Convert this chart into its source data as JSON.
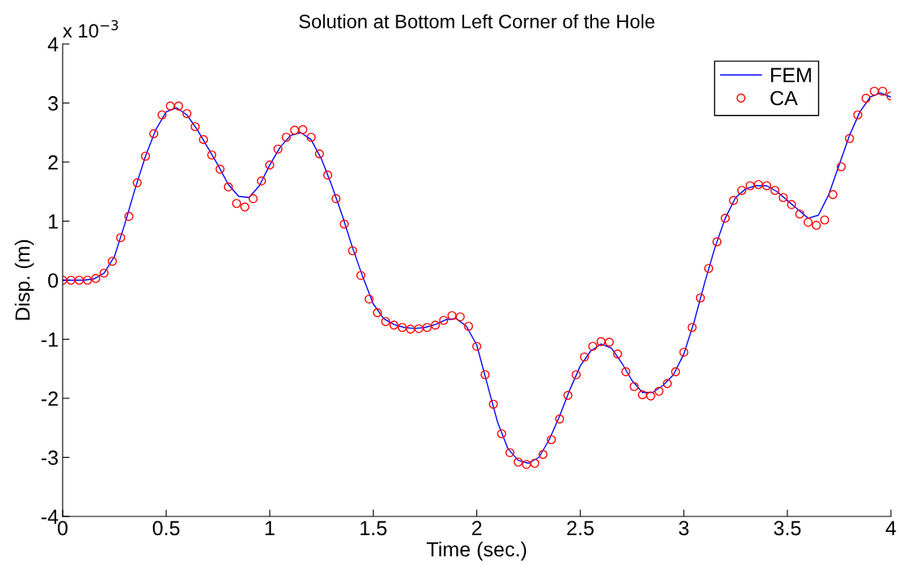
{
  "chart_data": {
    "type": "line",
    "title": "Solution at Bottom Left Corner of the Hole",
    "xlabel": "Time (sec.)",
    "ylabel": "Disp. (m)",
    "annotations": [
      "x 10$^{−3}$"
    ],
    "xlim": [
      0,
      4
    ],
    "xticks": [
      0,
      0.5,
      1,
      1.5,
      2,
      2.5,
      3,
      3.5,
      4
    ],
    "ylim": [
      -4,
      4
    ],
    "yticks": [
      -4,
      -3,
      -2,
      -1,
      0,
      1,
      2,
      3,
      4
    ],
    "grid": false,
    "legend": "top right",
    "series": [
      {
        "name": "FEM",
        "color": "#0000ff",
        "marker": "none",
        "line_style": "solid",
        "x": [
          0,
          0.05,
          0.1,
          0.15,
          0.2,
          0.25,
          0.3,
          0.35,
          0.4,
          0.45,
          0.5,
          0.55,
          0.6,
          0.65,
          0.7,
          0.75,
          0.8,
          0.85,
          0.9,
          0.95,
          1.0,
          1.05,
          1.1,
          1.15,
          1.2,
          1.25,
          1.3,
          1.35,
          1.4,
          1.45,
          1.5,
          1.55,
          1.6,
          1.65,
          1.7,
          1.75,
          1.8,
          1.85,
          1.9,
          1.95,
          2.0,
          2.05,
          2.1,
          2.15,
          2.2,
          2.25,
          2.3,
          2.35,
          2.4,
          2.45,
          2.5,
          2.55,
          2.6,
          2.65,
          2.7,
          2.75,
          2.8,
          2.85,
          2.9,
          2.95,
          3.0,
          3.05,
          3.1,
          3.15,
          3.2,
          3.25,
          3.3,
          3.35,
          3.4,
          3.45,
          3.5,
          3.55,
          3.6,
          3.65,
          3.7,
          3.75,
          3.8,
          3.85,
          3.9,
          3.95,
          4.0
        ],
        "values": [
          0,
          0,
          0,
          0.02,
          0.12,
          0.4,
          0.95,
          1.55,
          2.1,
          2.55,
          2.85,
          2.92,
          2.8,
          2.55,
          2.25,
          1.95,
          1.62,
          1.42,
          1.4,
          1.6,
          1.95,
          2.25,
          2.45,
          2.5,
          2.38,
          2.05,
          1.6,
          1.1,
          0.55,
          0.05,
          -0.4,
          -0.65,
          -0.75,
          -0.8,
          -0.82,
          -0.8,
          -0.75,
          -0.67,
          -0.65,
          -0.78,
          -1.1,
          -1.75,
          -2.4,
          -2.85,
          -3.05,
          -3.1,
          -3.0,
          -2.7,
          -2.3,
          -1.85,
          -1.45,
          -1.2,
          -1.08,
          -1.15,
          -1.4,
          -1.7,
          -1.9,
          -1.9,
          -1.78,
          -1.6,
          -1.25,
          -0.7,
          -0.05,
          0.55,
          1.05,
          1.4,
          1.55,
          1.6,
          1.6,
          1.5,
          1.35,
          1.2,
          1.05,
          1.1,
          1.45,
          1.95,
          2.45,
          2.85,
          3.1,
          3.17,
          3.1
        ]
      },
      {
        "name": "CA",
        "type": "scatter",
        "color": "#ff0000",
        "marker": "circle",
        "x": [
          0,
          0.04,
          0.08,
          0.12,
          0.16,
          0.2,
          0.24,
          0.28,
          0.32,
          0.36,
          0.4,
          0.44,
          0.48,
          0.52,
          0.56,
          0.6,
          0.64,
          0.68,
          0.72,
          0.76,
          0.8,
          0.84,
          0.88,
          0.92,
          0.96,
          1.0,
          1.04,
          1.08,
          1.12,
          1.16,
          1.2,
          1.24,
          1.28,
          1.32,
          1.36,
          1.4,
          1.44,
          1.48,
          1.52,
          1.56,
          1.6,
          1.64,
          1.68,
          1.72,
          1.76,
          1.8,
          1.84,
          1.88,
          1.92,
          1.96,
          2.0,
          2.04,
          2.08,
          2.12,
          2.16,
          2.2,
          2.24,
          2.28,
          2.32,
          2.36,
          2.4,
          2.44,
          2.48,
          2.52,
          2.56,
          2.6,
          2.64,
          2.68,
          2.72,
          2.76,
          2.8,
          2.84,
          2.88,
          2.92,
          2.96,
          3.0,
          3.04,
          3.08,
          3.12,
          3.16,
          3.2,
          3.24,
          3.28,
          3.32,
          3.36,
          3.4,
          3.44,
          3.48,
          3.52,
          3.56,
          3.6,
          3.64,
          3.68,
          3.72,
          3.76,
          3.8,
          3.84,
          3.88,
          3.92,
          3.96,
          4.0
        ],
        "values": [
          0,
          0,
          0,
          0,
          0.03,
          0.12,
          0.32,
          0.72,
          1.08,
          1.65,
          2.1,
          2.48,
          2.8,
          2.95,
          2.95,
          2.82,
          2.6,
          2.38,
          2.12,
          1.88,
          1.58,
          1.3,
          1.24,
          1.38,
          1.68,
          1.95,
          2.22,
          2.42,
          2.54,
          2.55,
          2.42,
          2.14,
          1.78,
          1.38,
          0.95,
          0.5,
          0.08,
          -0.32,
          -0.55,
          -0.7,
          -0.76,
          -0.8,
          -0.83,
          -0.82,
          -0.8,
          -0.76,
          -0.68,
          -0.6,
          -0.62,
          -0.78,
          -1.12,
          -1.6,
          -2.1,
          -2.6,
          -2.92,
          -3.08,
          -3.12,
          -3.1,
          -2.95,
          -2.7,
          -2.35,
          -1.95,
          -1.6,
          -1.3,
          -1.12,
          -1.04,
          -1.05,
          -1.25,
          -1.55,
          -1.8,
          -1.94,
          -1.96,
          -1.88,
          -1.75,
          -1.55,
          -1.22,
          -0.8,
          -0.3,
          0.2,
          0.65,
          1.05,
          1.35,
          1.52,
          1.6,
          1.62,
          1.6,
          1.52,
          1.4,
          1.28,
          1.12,
          0.98,
          0.93,
          1.02,
          1.45,
          1.92,
          2.4,
          2.8,
          3.08,
          3.2,
          3.2,
          3.12
        ]
      }
    ]
  }
}
